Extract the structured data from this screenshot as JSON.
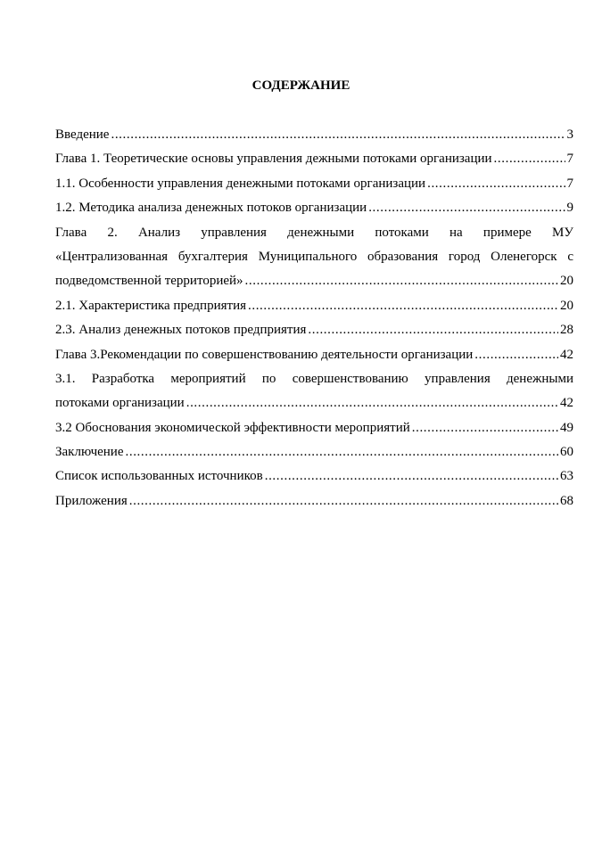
{
  "title": "СОДЕРЖАНИЕ",
  "entries": [
    {
      "lines": [
        "Введение"
      ],
      "page": "3"
    },
    {
      "lines": [
        "Глава 1. Теоретические основы управления дежными потоками организации"
      ],
      "page": "7"
    },
    {
      "lines": [
        "1.1. Особенности управления денежными потоками организации"
      ],
      "page": "7"
    },
    {
      "lines": [
        "1.2. Методика анализа денежных потоков организации"
      ],
      "page": "9"
    },
    {
      "lines": [
        "Глава 2. Анализ управления денежными потоками на примере МУ",
        "«Централизованная бухгалтерия Муниципального образования город Оленегорск с",
        "подведомственной территорией»"
      ],
      "page": "20"
    },
    {
      "lines": [
        "2.1. Характеристика предприятия"
      ],
      "page": "20"
    },
    {
      "lines": [
        "2.3. Анализ денежных потоков предприятия"
      ],
      "page": "28"
    },
    {
      "lines": [
        "Глава 3.Рекомендации по совершенствованию деятельности организации"
      ],
      "page": "42"
    },
    {
      "lines": [
        "3.1. Разработка мероприятий по совершенствованию управления денежными",
        "потоками организации"
      ],
      "page": "42"
    },
    {
      "lines": [
        "3.2 Обоснования экономической эффективности мероприятий"
      ],
      "page": "49"
    },
    {
      "lines": [
        "Заключение"
      ],
      "page": "60"
    },
    {
      "lines": [
        "Список использованных источников"
      ],
      "page": "63"
    },
    {
      "lines": [
        "Приложения"
      ],
      "page": "68"
    }
  ]
}
